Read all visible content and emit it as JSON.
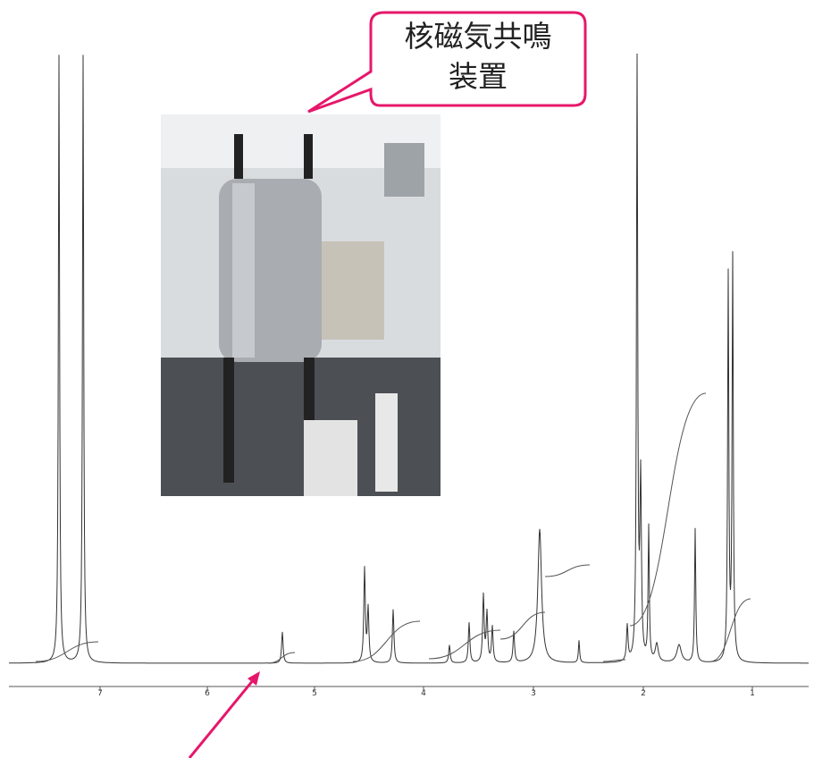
{
  "callout": {
    "lines": [
      "核磁気共鳴",
      "装置"
    ]
  },
  "spectrum": {
    "axis_labels": [
      "7",
      "6",
      "5",
      "4",
      "3",
      "2",
      "1"
    ]
  }
}
